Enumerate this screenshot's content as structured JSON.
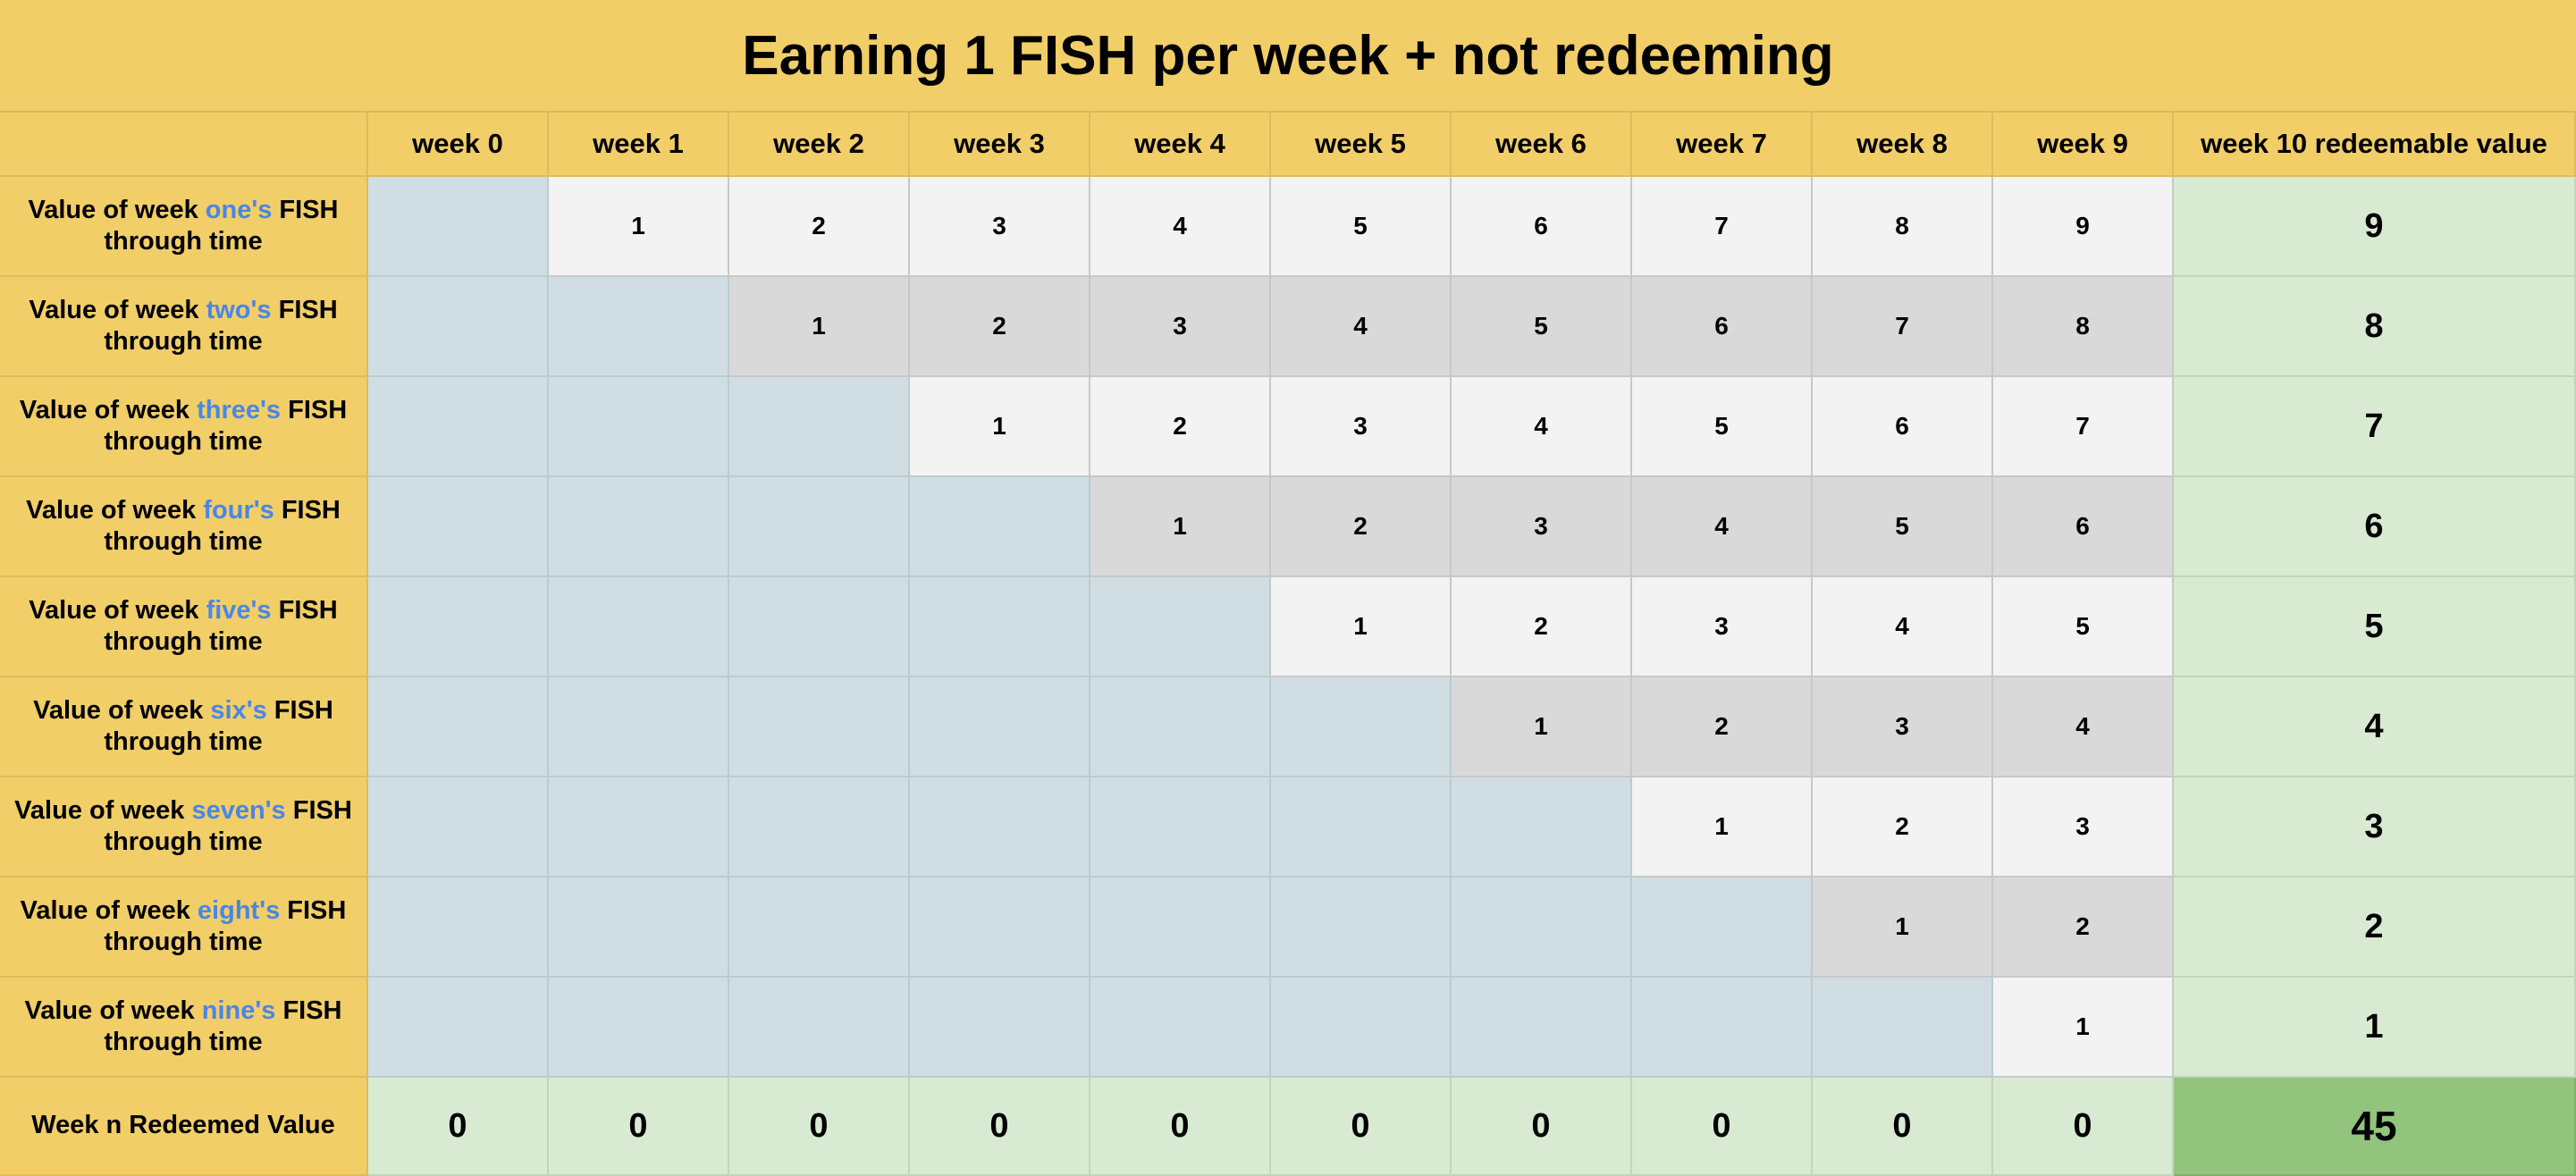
{
  "title": "Earning 1 FISH per week + not redeeming",
  "columns": [
    "",
    "week 0",
    "week 1",
    "week 2",
    "week 3",
    "week 4",
    "week 5",
    "week 6",
    "week 7",
    "week 8",
    "week 9",
    "week 10 redeemable value"
  ],
  "rows": [
    {
      "label_prefix": "Value of week ",
      "label_highlight": "one's",
      "label_suffix": " FISH through time",
      "values": [
        "",
        "1",
        "2",
        "3",
        "4",
        "5",
        "6",
        "7",
        "8",
        "9"
      ],
      "redeemable": "9"
    },
    {
      "label_prefix": "Value of week ",
      "label_highlight": "two's",
      "label_suffix": " FISH through time",
      "values": [
        "",
        "",
        "1",
        "2",
        "3",
        "4",
        "5",
        "6",
        "7",
        "8"
      ],
      "redeemable": "8"
    },
    {
      "label_prefix": "Value of week ",
      "label_highlight": "three's",
      "label_suffix": " FISH through time",
      "values": [
        "",
        "",
        "",
        "1",
        "2",
        "3",
        "4",
        "5",
        "6",
        "7"
      ],
      "redeemable": "7"
    },
    {
      "label_prefix": "Value of week ",
      "label_highlight": "four's",
      "label_suffix": " FISH through time",
      "values": [
        "",
        "",
        "",
        "",
        "1",
        "2",
        "3",
        "4",
        "5",
        "6"
      ],
      "redeemable": "6"
    },
    {
      "label_prefix": "Value of week ",
      "label_highlight": "five's",
      "label_suffix": " FISH through time",
      "values": [
        "",
        "",
        "",
        "",
        "",
        "1",
        "2",
        "3",
        "4",
        "5"
      ],
      "redeemable": "5"
    },
    {
      "label_prefix": "Value of week ",
      "label_highlight": "six's",
      "label_suffix": " FISH through time",
      "values": [
        "",
        "",
        "",
        "",
        "",
        "",
        "1",
        "2",
        "3",
        "4"
      ],
      "redeemable": "4"
    },
    {
      "label_prefix": "Value of week ",
      "label_highlight": "seven's",
      "label_suffix": " FISH through time",
      "values": [
        "",
        "",
        "",
        "",
        "",
        "",
        "",
        "1",
        "2",
        "3"
      ],
      "redeemable": "3"
    },
    {
      "label_prefix": "Value of week ",
      "label_highlight": "eight's",
      "label_suffix": " FISH through time",
      "values": [
        "",
        "",
        "",
        "",
        "",
        "",
        "",
        "",
        "1",
        "2"
      ],
      "redeemable": "2"
    },
    {
      "label_prefix": "Value of week ",
      "label_highlight": "nine's",
      "label_suffix": " FISH through time",
      "values": [
        "",
        "",
        "",
        "",
        "",
        "",
        "",
        "",
        "",
        "1"
      ],
      "redeemable": "1"
    }
  ],
  "footer": {
    "label": "Week n Redeemed Value",
    "values": [
      "0",
      "0",
      "0",
      "0",
      "0",
      "0",
      "0",
      "0",
      "0",
      "0"
    ],
    "total": "45"
  },
  "colors": {
    "header_bg": "#f1ce67",
    "highlight_text": "#4a86e8",
    "empty_cell": "#d0dee3",
    "value_light": "#f3f3f3",
    "value_dark": "#d9d9d9",
    "redeem_cell": "#d9ead3",
    "total_cell": "#93c47d"
  }
}
